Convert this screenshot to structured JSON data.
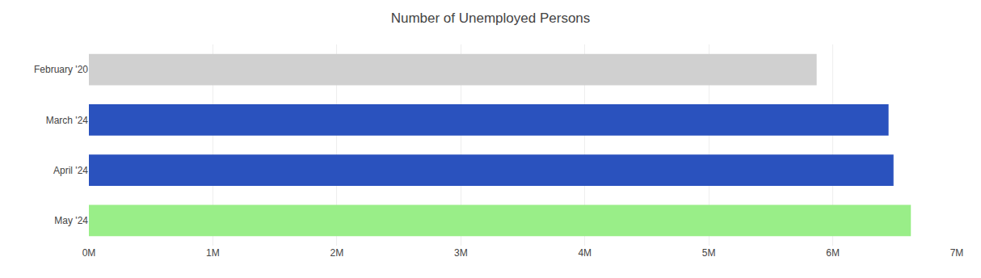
{
  "chart_data": {
    "type": "bar",
    "orientation": "horizontal",
    "title": "Number of Unemployed Persons",
    "categories": [
      "February '20",
      "March '24",
      "April '24",
      "May '24"
    ],
    "values": [
      5870000,
      6450000,
      6490000,
      6630000
    ],
    "colors": [
      "#d0d0d0",
      "#2a52be",
      "#2a52be",
      "#99ee88"
    ],
    "xlim": [
      0,
      7000000
    ],
    "xticks": [
      {
        "value": 0,
        "label": "0M"
      },
      {
        "value": 1000000,
        "label": "1M"
      },
      {
        "value": 2000000,
        "label": "2M"
      },
      {
        "value": 3000000,
        "label": "3M"
      },
      {
        "value": 4000000,
        "label": "4M"
      },
      {
        "value": 5000000,
        "label": "5M"
      },
      {
        "value": 6000000,
        "label": "6M"
      },
      {
        "value": 7000000,
        "label": "7M"
      }
    ],
    "grid": true
  }
}
